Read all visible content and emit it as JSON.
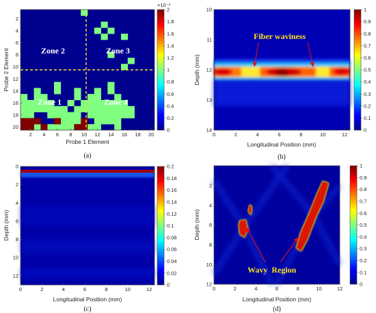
{
  "chart_data": [
    {
      "id": "a",
      "type": "heatmap",
      "caption": "(a)",
      "xlabel": "Probe 1 Element",
      "ylabel": "Probe 2 Element",
      "x_ticks": [
        2,
        4,
        6,
        8,
        10,
        12,
        14,
        16,
        18,
        20
      ],
      "y_ticks": [
        2,
        4,
        6,
        8,
        10,
        12,
        14,
        16,
        18,
        20
      ],
      "grid_size": 20,
      "colorbar": {
        "ticks": [
          0,
          0.2,
          0.4,
          0.6,
          0.8,
          1,
          1.2,
          1.4,
          1.6,
          1.8,
          2
        ],
        "exponent": "×10⁻³",
        "range": [
          0,
          2
        ]
      },
      "zone_labels": [
        "Zone 2",
        "Zone 3",
        "Zone 1",
        "Zone 4"
      ],
      "zone_dividers": {
        "vertical_x": 10.5,
        "horizontal_y": 10.5
      },
      "cells_value_1.0": [
        [
          10,
          1
        ],
        [
          13,
          3
        ],
        [
          12,
          4
        ],
        [
          14,
          4
        ],
        [
          13,
          5
        ],
        [
          16,
          5
        ],
        [
          14,
          8
        ],
        [
          17,
          9
        ],
        [
          16,
          10
        ],
        [
          6,
          13
        ],
        [
          14,
          13
        ],
        [
          3,
          14
        ],
        [
          6,
          14
        ],
        [
          9,
          14
        ],
        [
          12,
          14
        ],
        [
          14,
          14
        ],
        [
          1,
          15
        ],
        [
          3,
          15
        ],
        [
          4,
          15
        ],
        [
          9,
          15
        ],
        [
          11,
          15
        ],
        [
          12,
          15
        ],
        [
          15,
          15
        ],
        [
          1,
          16
        ],
        [
          2,
          16
        ],
        [
          3,
          16
        ],
        [
          4,
          16
        ],
        [
          5,
          16
        ],
        [
          8,
          16
        ],
        [
          10,
          16
        ],
        [
          11,
          16
        ],
        [
          12,
          16
        ],
        [
          13,
          16
        ],
        [
          14,
          16
        ],
        [
          15,
          16
        ],
        [
          16,
          16
        ],
        [
          1,
          17
        ],
        [
          2,
          17
        ],
        [
          3,
          17
        ],
        [
          4,
          17
        ],
        [
          5,
          17
        ],
        [
          6,
          17
        ],
        [
          7,
          17
        ],
        [
          9,
          17
        ],
        [
          10,
          17
        ],
        [
          11,
          17
        ],
        [
          12,
          17
        ],
        [
          13,
          17
        ],
        [
          14,
          17
        ],
        [
          15,
          17
        ],
        [
          16,
          17
        ],
        [
          17,
          17
        ],
        [
          1,
          18
        ],
        [
          2,
          18
        ],
        [
          5,
          18
        ],
        [
          6,
          18
        ],
        [
          7,
          18
        ],
        [
          8,
          18
        ],
        [
          9,
          18
        ],
        [
          11,
          18
        ],
        [
          12,
          18
        ],
        [
          13,
          18
        ],
        [
          14,
          18
        ],
        [
          15,
          18
        ],
        [
          16,
          18
        ],
        [
          17,
          18
        ],
        [
          1,
          19
        ],
        [
          7,
          19
        ],
        [
          8,
          19
        ],
        [
          9,
          19
        ],
        [
          12,
          19
        ],
        [
          13,
          19
        ],
        [
          14,
          19
        ],
        [
          15,
          19
        ],
        [
          3,
          20
        ],
        [
          5,
          20
        ],
        [
          6,
          20
        ],
        [
          7,
          20
        ],
        [
          8,
          20
        ],
        [
          11,
          20
        ],
        [
          12,
          20
        ],
        [
          15,
          20
        ]
      ],
      "cells_value_2.0": [
        [
          1,
          19
        ],
        [
          2,
          19
        ],
        [
          3,
          19
        ],
        [
          6,
          19
        ],
        [
          10,
          19
        ],
        [
          1,
          20
        ],
        [
          2,
          20
        ],
        [
          4,
          20
        ],
        [
          9,
          20
        ],
        [
          10,
          20
        ]
      ]
    },
    {
      "id": "b",
      "type": "heatmap",
      "caption": "(b)",
      "xlabel": "Longitudinal Position (mm)",
      "ylabel": "Depth (mm)",
      "xlim": [
        0,
        12.5
      ],
      "ylim": [
        10,
        14
      ],
      "x_ticks": [
        0,
        2,
        4,
        6,
        8,
        10,
        12
      ],
      "y_ticks": [
        10,
        11,
        12,
        13,
        14
      ],
      "colorbar": {
        "ticks": [
          0,
          0.1,
          0.2,
          0.3,
          0.4,
          0.5,
          0.6,
          0.7,
          0.8,
          0.9,
          1
        ],
        "range": [
          0,
          1
        ]
      },
      "annotation": "Fiber waviness",
      "annotation_arrow_targets_x": [
        3.5,
        8.8
      ],
      "bright_band": {
        "depth": 12.05,
        "peak_x": [
          0.8,
          6.3,
          11.7
        ]
      }
    },
    {
      "id": "c",
      "type": "heatmap",
      "caption": "(c)",
      "xlabel": "Longitudinal Position (mm)",
      "ylabel": "Depth (mm)",
      "xlim": [
        0,
        12.5
      ],
      "ylim": [
        0,
        13
      ],
      "x_ticks": [
        0,
        2,
        4,
        6,
        8,
        10,
        12
      ],
      "y_ticks": [
        0,
        2,
        4,
        6,
        8,
        10,
        12
      ],
      "colorbar": {
        "ticks": [
          0,
          0.02,
          0.04,
          0.06,
          0.08,
          0.1,
          0.12,
          0.14,
          0.16,
          0.18,
          0.2
        ],
        "range": [
          0,
          0.2
        ]
      },
      "bright_band": {
        "depth": 0.5
      }
    },
    {
      "id": "d",
      "type": "heatmap",
      "caption": "(d)",
      "xlabel": "Longitudinal Position (mm)",
      "ylabel": "Depth (mm)",
      "xlim": [
        0,
        12
      ],
      "ylim": [
        0,
        12
      ],
      "x_ticks": [
        0,
        2,
        4,
        6,
        8,
        10,
        12
      ],
      "y_ticks": [
        2,
        4,
        6,
        8,
        10,
        12
      ],
      "colorbar": {
        "ticks": [
          0,
          0.1,
          0.2,
          0.3,
          0.4,
          0.5,
          0.6,
          0.7,
          0.8,
          0.9,
          1
        ],
        "range": [
          0,
          1
        ]
      },
      "annotation": "Wavy  Region",
      "annotation_arrow_targets": [
        [
          2.9,
          6.2
        ],
        [
          8.1,
          7.3
        ]
      ],
      "hot_regions": [
        {
          "outline": [
            [
              2.5,
              5.6
            ],
            [
              3.0,
              5.5
            ],
            [
              3.2,
              6.4
            ],
            [
              2.9,
              7.2
            ],
            [
              2.5,
              6.9
            ],
            [
              2.4,
              6.0
            ]
          ]
        },
        {
          "outline": [
            [
              3.45,
              4.0
            ],
            [
              3.6,
              4.2
            ],
            [
              3.5,
              4.9
            ],
            [
              3.3,
              4.6
            ]
          ]
        },
        {
          "outline": [
            [
              10.4,
              1.6
            ],
            [
              10.9,
              1.8
            ],
            [
              10.4,
              3.6
            ],
            [
              9.7,
              5.2
            ],
            [
              8.9,
              7.4
            ],
            [
              8.3,
              8.6
            ],
            [
              7.9,
              8.3
            ],
            [
              8.3,
              6.8
            ],
            [
              9.2,
              4.6
            ],
            [
              9.8,
              3.0
            ]
          ]
        }
      ]
    }
  ]
}
